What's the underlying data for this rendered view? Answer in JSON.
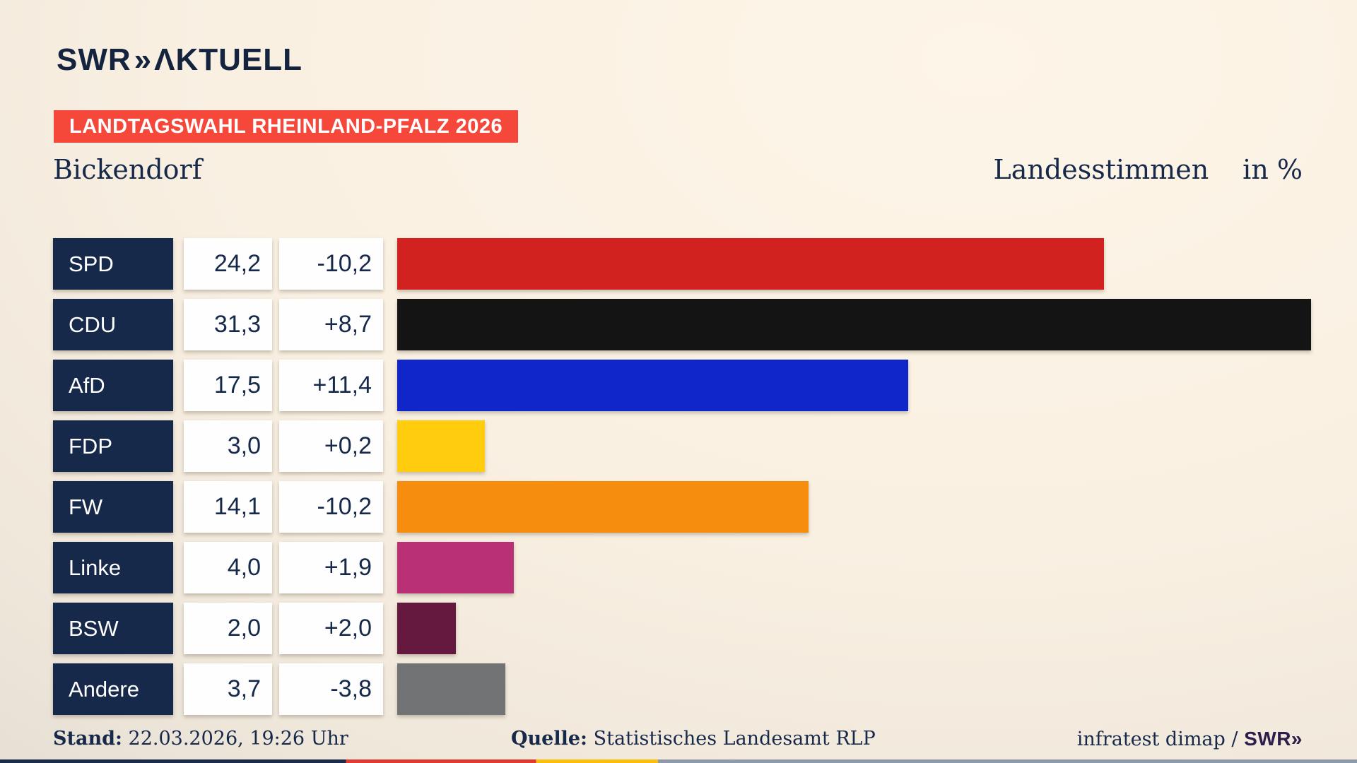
{
  "header": {
    "logo_swr": "SWR",
    "logo_chevrons": "»",
    "logo_aktuell": "ΛKTUELL",
    "badge": "LANDTAGSWAHL RHEINLAND-PFALZ 2026",
    "title_left": "Bickendorf",
    "title_right": "Landesstimmen",
    "title_unit": "in %"
  },
  "chart_data": {
    "type": "bar",
    "orientation": "horizontal",
    "title": "Landtagswahl Rheinland-Pfalz 2026 — Bickendorf, Landesstimmen in %",
    "xlabel": "",
    "ylabel": "",
    "xlim": [
      0,
      31.3
    ],
    "max_value": 31.3,
    "grid": false,
    "legend": false,
    "categories": [
      "SPD",
      "CDU",
      "AfD",
      "FDP",
      "FW",
      "Linke",
      "BSW",
      "Andere"
    ],
    "values": [
      24.2,
      31.3,
      17.5,
      3.0,
      14.1,
      4.0,
      2.0,
      3.7
    ],
    "changes": [
      -10.2,
      8.7,
      11.4,
      0.2,
      -10.2,
      1.9,
      2.0,
      -3.8
    ],
    "rows": [
      {
        "party": "SPD",
        "value_label": "24,2",
        "change_label": "-10,2",
        "value": 24.2,
        "color": "#d2221f"
      },
      {
        "party": "CDU",
        "value_label": "31,3",
        "change_label": "+8,7",
        "value": 31.3,
        "color": "#141414"
      },
      {
        "party": "AfD",
        "value_label": "17,5",
        "change_label": "+11,4",
        "value": 17.5,
        "color": "#1126c8"
      },
      {
        "party": "FDP",
        "value_label": "3,0",
        "change_label": "+0,2",
        "value": 3.0,
        "color": "#ffcd0e"
      },
      {
        "party": "FW",
        "value_label": "14,1",
        "change_label": "-10,2",
        "value": 14.1,
        "color": "#f78d0e"
      },
      {
        "party": "Linke",
        "value_label": "4,0",
        "change_label": "+1,9",
        "value": 4.0,
        "color": "#ba3077"
      },
      {
        "party": "BSW",
        "value_label": "2,0",
        "change_label": "+2,0",
        "value": 2.0,
        "color": "#65193e"
      },
      {
        "party": "Andere",
        "value_label": "3,7",
        "change_label": "-3,8",
        "value": 3.7,
        "color": "#727375"
      }
    ]
  },
  "footer": {
    "stand_label": "Stand:",
    "stand_value": "22.03.2026, 19:26 Uhr",
    "quelle_label": "Quelle:",
    "quelle_value": "Statistisches Landesamt RLP",
    "credit_text": "infratest dimap /",
    "credit_logo": "SWR»",
    "stripe_segments": [
      {
        "color": "#1b2b49",
        "from": 0,
        "to": 25.5
      },
      {
        "color": "#e23a31",
        "from": 25.5,
        "to": 39.5
      },
      {
        "color": "#fcbe0d",
        "from": 39.5,
        "to": 48.5
      },
      {
        "color": "#8e9aa9",
        "from": 48.5,
        "to": 100
      }
    ]
  },
  "colors": {
    "navy": "#16294a",
    "badge_red": "#f5483a",
    "background_warm": "#fdf5e7",
    "background_cool": "#d6d1ca",
    "box_white": "#fefefe"
  }
}
